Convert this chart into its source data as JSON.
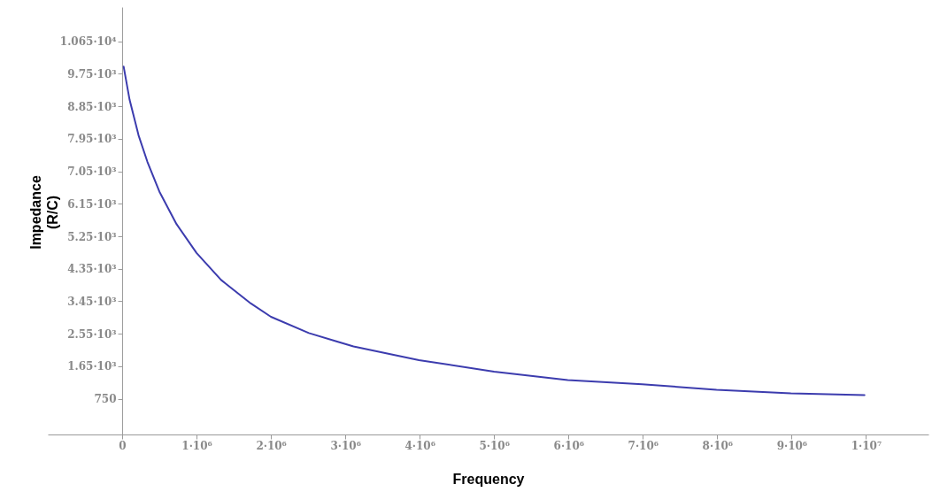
{
  "chart_data": {
    "type": "line",
    "xlabel": "Frequency",
    "ylabel": "Impedance\n(R/C)",
    "grid": false,
    "marker": "none",
    "line_style": "solid",
    "xlim": [
      -1000000,
      10840000
    ],
    "ylim": [
      -240,
      11600
    ],
    "xticks": [
      0,
      {
        "value": 1000000,
        "label": "1·10⁶"
      },
      {
        "value": 2000000,
        "label": "2·10⁶"
      },
      {
        "value": 3000000,
        "label": "3·10⁶"
      },
      {
        "value": 4000000,
        "label": "4·10⁶"
      },
      {
        "value": 5000000,
        "label": "5·10⁶"
      },
      {
        "value": 6000000,
        "label": "6·10⁶"
      },
      {
        "value": 7000000,
        "label": "7·10⁶"
      },
      {
        "value": 8000000,
        "label": "8·10⁶"
      },
      {
        "value": 9000000,
        "label": "9·10⁶"
      },
      {
        "value": 10000000,
        "label": "1·10⁷"
      }
    ],
    "yticks": [
      750,
      {
        "value": 1650,
        "label": "1.65·10³"
      },
      {
        "value": 2550,
        "label": "2.55·10³"
      },
      {
        "value": 3450,
        "label": "3.45·10³"
      },
      {
        "value": 4350,
        "label": "4.35·10³"
      },
      {
        "value": 5250,
        "label": "5.25·10³"
      },
      {
        "value": 6150,
        "label": "6.15·10³"
      },
      {
        "value": 7050,
        "label": "7.05·10³"
      },
      {
        "value": 7950,
        "label": "7.95·10³"
      },
      {
        "value": 8850,
        "label": "8.85·10³"
      },
      {
        "value": 9750,
        "label": "9.75·10³"
      },
      {
        "value": 10650,
        "label": "1.065·10⁴"
      }
    ],
    "x": [
      20000,
      100000,
      220000,
      340000,
      500000,
      730000,
      1000000,
      1330000,
      1730000,
      2000000,
      2510000,
      2880000,
      3110000,
      3990000,
      5000000,
      5990000,
      6990000,
      7990000,
      8990000,
      9980000
    ],
    "series": [
      {
        "color": "#3c3cae",
        "values": [
          9950,
          9030,
          8050,
          7310,
          6490,
          5590,
          4790,
          4040,
          3390,
          3020,
          2570,
          2340,
          2200,
          1820,
          1500,
          1270,
          1150,
          1000,
          900,
          850
        ]
      }
    ]
  }
}
